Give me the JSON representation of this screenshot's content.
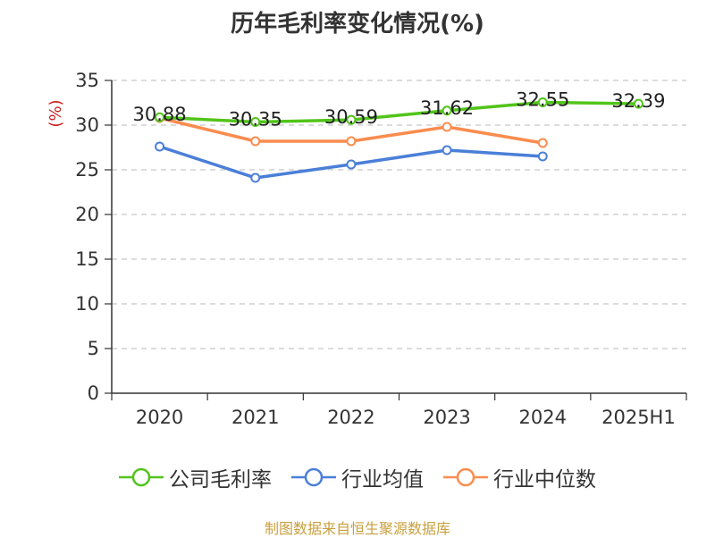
{
  "chart_data": {
    "type": "line",
    "title": "历年毛利率变化情况(%)",
    "ylabel": "(%)",
    "xlabel": "",
    "categories": [
      "2020",
      "2021",
      "2022",
      "2023",
      "2024",
      "2025H1"
    ],
    "ylim": [
      0,
      35
    ],
    "yticks": [
      0,
      5,
      10,
      15,
      20,
      25,
      30,
      35
    ],
    "grid": "horizontal dashed",
    "legend_position": "bottom",
    "series": [
      {
        "name": "公司毛利率",
        "color": "#52c41a",
        "values": [
          30.88,
          30.35,
          30.59,
          31.62,
          32.55,
          32.39
        ],
        "labels": [
          "30.88",
          "30.35",
          "30.59",
          "31.62",
          "32.55",
          "32.39"
        ]
      },
      {
        "name": "行业均值",
        "color": "#4a7fd8",
        "values": [
          27.6,
          24.1,
          25.6,
          27.2,
          26.5,
          null
        ]
      },
      {
        "name": "行业中位数",
        "color": "#fa8c4e",
        "values": [
          30.8,
          28.2,
          28.2,
          29.8,
          28.0,
          null
        ]
      }
    ]
  },
  "footer": {
    "source": "制图数据来自恒生聚源数据库"
  }
}
